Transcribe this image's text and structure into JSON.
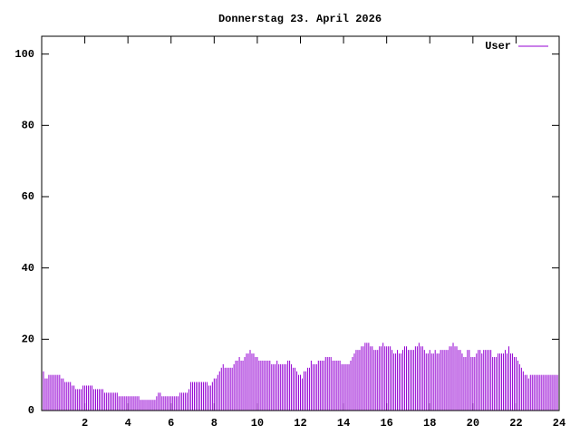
{
  "chart_data": {
    "type": "impulses",
    "title": "Donnerstag 23. April 2026",
    "x": [
      0,
      0.083,
      0.167,
      0.25,
      0.333,
      0.417,
      0.5,
      0.583,
      0.667,
      0.75,
      0.833,
      0.917,
      1,
      1.083,
      1.167,
      1.25,
      1.333,
      1.417,
      1.5,
      1.583,
      1.667,
      1.75,
      1.833,
      1.917,
      2,
      2.083,
      2.167,
      2.25,
      2.333,
      2.417,
      2.5,
      2.583,
      2.667,
      2.75,
      2.833,
      2.917,
      3,
      3.083,
      3.167,
      3.25,
      3.333,
      3.417,
      3.5,
      3.583,
      3.667,
      3.75,
      3.833,
      3.917,
      4,
      4.083,
      4.167,
      4.25,
      4.333,
      4.417,
      4.5,
      4.583,
      4.667,
      4.75,
      4.833,
      4.917,
      5,
      5.083,
      5.167,
      5.25,
      5.333,
      5.417,
      5.5,
      5.583,
      5.667,
      5.75,
      5.833,
      5.917,
      6,
      6.083,
      6.167,
      6.25,
      6.333,
      6.417,
      6.5,
      6.583,
      6.667,
      6.75,
      6.833,
      6.917,
      7,
      7.083,
      7.167,
      7.25,
      7.333,
      7.417,
      7.5,
      7.583,
      7.667,
      7.75,
      7.833,
      7.917,
      8,
      8.083,
      8.167,
      8.25,
      8.333,
      8.417,
      8.5,
      8.583,
      8.667,
      8.75,
      8.833,
      8.917,
      9,
      9.083,
      9.167,
      9.25,
      9.333,
      9.417,
      9.5,
      9.583,
      9.667,
      9.75,
      9.833,
      9.917,
      10,
      10.083,
      10.167,
      10.25,
      10.333,
      10.417,
      10.5,
      10.583,
      10.667,
      10.75,
      10.833,
      10.917,
      11,
      11.083,
      11.167,
      11.25,
      11.333,
      11.417,
      11.5,
      11.583,
      11.667,
      11.75,
      11.833,
      11.917,
      12,
      12.083,
      12.167,
      12.25,
      12.333,
      12.417,
      12.5,
      12.583,
      12.667,
      12.75,
      12.833,
      12.917,
      13,
      13.083,
      13.167,
      13.25,
      13.333,
      13.417,
      13.5,
      13.583,
      13.667,
      13.75,
      13.833,
      13.917,
      14,
      14.083,
      14.167,
      14.25,
      14.333,
      14.417,
      14.5,
      14.583,
      14.667,
      14.75,
      14.833,
      14.917,
      15,
      15.083,
      15.167,
      15.25,
      15.333,
      15.417,
      15.5,
      15.583,
      15.667,
      15.75,
      15.833,
      15.917,
      16,
      16.083,
      16.167,
      16.25,
      16.333,
      16.417,
      16.5,
      16.583,
      16.667,
      16.75,
      16.833,
      16.917,
      17,
      17.083,
      17.167,
      17.25,
      17.333,
      17.417,
      17.5,
      17.583,
      17.667,
      17.75,
      17.833,
      17.917,
      18,
      18.083,
      18.167,
      18.25,
      18.333,
      18.417,
      18.5,
      18.583,
      18.667,
      18.75,
      18.833,
      18.917,
      19,
      19.083,
      19.167,
      19.25,
      19.333,
      19.417,
      19.5,
      19.583,
      19.667,
      19.75,
      19.833,
      19.917,
      20,
      20.083,
      20.167,
      20.25,
      20.333,
      20.417,
      20.5,
      20.583,
      20.667,
      20.75,
      20.833,
      20.917,
      21,
      21.083,
      21.167,
      21.25,
      21.333,
      21.417,
      21.5,
      21.583,
      21.667,
      21.75,
      21.833,
      21.917,
      22,
      22.083,
      22.167,
      22.25,
      22.333,
      22.417,
      22.5,
      22.583,
      22.667,
      22.75,
      22.833,
      22.917,
      23,
      23.083,
      23.167,
      23.25,
      23.333,
      23.417,
      23.5,
      23.583,
      23.667,
      23.75,
      23.833,
      23.917,
      24
    ],
    "series": [
      {
        "name": "User",
        "color": "#9400d3",
        "values": [
          11,
          11,
          9,
          9,
          10,
          10,
          10,
          10,
          10,
          10,
          10,
          9,
          9,
          8,
          8,
          8,
          8,
          7,
          7,
          6,
          6,
          6,
          6,
          7,
          7,
          7,
          7,
          7,
          7,
          6,
          6,
          6,
          6,
          6,
          6,
          5,
          5,
          5,
          5,
          5,
          5,
          5,
          5,
          4,
          4,
          4,
          4,
          4,
          4,
          4,
          4,
          4,
          4,
          4,
          4,
          3,
          3,
          3,
          3,
          3,
          3,
          3,
          3,
          3,
          4,
          5,
          5,
          4,
          4,
          4,
          4,
          4,
          4,
          4,
          4,
          4,
          4,
          5,
          5,
          5,
          5,
          5,
          6,
          8,
          8,
          8,
          8,
          8,
          8,
          8,
          8,
          8,
          8,
          7,
          7,
          8,
          9,
          9,
          10,
          11,
          12,
          13,
          12,
          12,
          12,
          12,
          12,
          13,
          14,
          14,
          15,
          14,
          14,
          15,
          16,
          16,
          17,
          16,
          16,
          15,
          15,
          14,
          14,
          14,
          14,
          14,
          14,
          14,
          13,
          13,
          13,
          14,
          13,
          13,
          13,
          13,
          13,
          14,
          14,
          13,
          12,
          12,
          11,
          10,
          10,
          9,
          11,
          11,
          12,
          12,
          14,
          13,
          13,
          13,
          14,
          14,
          14,
          14,
          15,
          15,
          15,
          15,
          14,
          14,
          14,
          14,
          14,
          13,
          13,
          13,
          13,
          13,
          14,
          15,
          16,
          17,
          17,
          17,
          18,
          18,
          19,
          19,
          19,
          18,
          18,
          17,
          17,
          17,
          18,
          18,
          19,
          18,
          18,
          18,
          18,
          17,
          16,
          16,
          17,
          16,
          16,
          17,
          18,
          18,
          17,
          17,
          17,
          17,
          18,
          18,
          19,
          18,
          18,
          17,
          16,
          16,
          17,
          16,
          16,
          17,
          16,
          16,
          17,
          17,
          17,
          17,
          17,
          18,
          18,
          19,
          18,
          18,
          17,
          17,
          16,
          15,
          15,
          17,
          17,
          15,
          15,
          15,
          16,
          17,
          17,
          16,
          17,
          17,
          17,
          17,
          17,
          15,
          15,
          15,
          16,
          16,
          16,
          16,
          17,
          16,
          18,
          16,
          16,
          15,
          15,
          14,
          13,
          12,
          11,
          10,
          10,
          9,
          10,
          10,
          10,
          10,
          10,
          10,
          10,
          10,
          10,
          10,
          10,
          10,
          10,
          10,
          10,
          10,
          10
        ]
      }
    ],
    "xlim": [
      0,
      24
    ],
    "xticks": [
      2,
      4,
      6,
      8,
      10,
      12,
      14,
      16,
      18,
      20,
      22,
      24
    ],
    "ylim": [
      0,
      105
    ],
    "yticks": [
      0,
      20,
      40,
      60,
      80,
      100
    ],
    "legend": "top-right"
  }
}
